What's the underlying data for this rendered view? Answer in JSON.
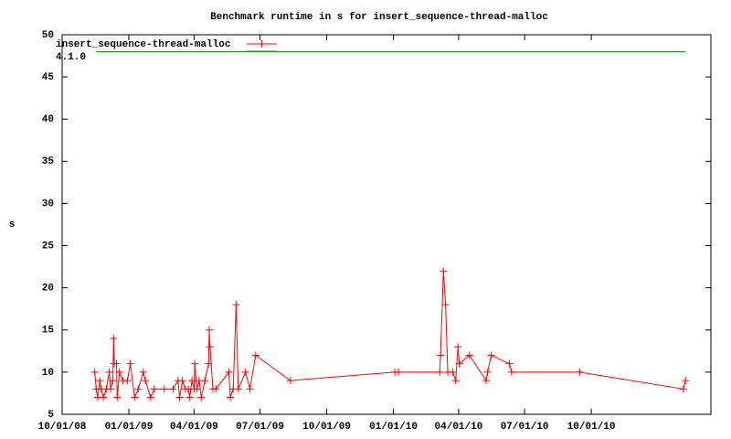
{
  "chart_data": {
    "type": "line",
    "title": "Benchmark runtime in s for insert_sequence-thread-malloc",
    "y_label": "s",
    "xlim": [
      "10/01/08",
      "03/15/11"
    ],
    "xticks": [
      "10/01/08",
      "01/01/09",
      "04/01/09",
      "07/01/09",
      "10/01/09",
      "01/01/10",
      "04/01/10",
      "07/01/10",
      "10/01/10"
    ],
    "ylim": [
      5,
      50
    ],
    "yticks": [
      5,
      10,
      15,
      20,
      25,
      30,
      35,
      40,
      45,
      50
    ],
    "legend": "top-left",
    "series": [
      {
        "name": "insert_sequence-thread-malloc",
        "color": "#ff0000",
        "markers": true,
        "x": [
          "11/15/08",
          "11/17/08",
          "11/19/08",
          "11/22/08",
          "11/24/08",
          "11/27/08",
          "12/01/08",
          "12/05/08",
          "12/07/08",
          "12/10/08",
          "12/11/08",
          "12/12/08",
          "12/15/08",
          "12/16/08",
          "12/19/08",
          "12/24/08",
          "12/30/08",
          "01/03/09",
          "01/09/09",
          "01/14/09",
          "01/21/09",
          "01/24/09",
          "01/31/09",
          "02/05/09",
          "02/19/09",
          "03/03/09",
          "03/10/09",
          "03/12/09",
          "03/16/09",
          "03/20/09",
          "03/24/09",
          "03/26/09",
          "03/29/09",
          "04/01/09",
          "04/02/09",
          "04/05/09",
          "04/08/09",
          "04/11/09",
          "04/16/09",
          "04/21/09",
          "04/22/09",
          "04/23/09",
          "04/27/09",
          "05/01/09",
          "05/19/09",
          "05/21/09",
          "05/25/09",
          "05/29/09",
          "06/01/09",
          "06/11/09",
          "06/17/09",
          "06/25/09",
          "08/12/09",
          "01/03/10",
          "01/08/10",
          "03/06/10",
          "03/07/10",
          "03/11/10",
          "03/14/10",
          "03/17/10",
          "03/24/10",
          "03/28/10",
          "03/31/10",
          "04/02/10",
          "04/16/10",
          "05/09/10",
          "05/11/10",
          "05/16/10",
          "06/10/10",
          "06/13/10",
          "09/15/10",
          "02/05/11",
          "02/08/11"
        ],
        "values": [
          10,
          8,
          7,
          9,
          8,
          7,
          8,
          10,
          8,
          9,
          14,
          11,
          11,
          7,
          10,
          9,
          9,
          11,
          7,
          8,
          10,
          9,
          7,
          8,
          8,
          8,
          9,
          7,
          9,
          8,
          8,
          7,
          9,
          8,
          11,
          8,
          9,
          7,
          9,
          11,
          15,
          13,
          8,
          8,
          10,
          7,
          8,
          18,
          8,
          10,
          8,
          12,
          9,
          10,
          10,
          10,
          12,
          22,
          18,
          10,
          10,
          9,
          13,
          11,
          12,
          9,
          10,
          12,
          11,
          10,
          10,
          8,
          9
        ]
      },
      {
        "name": "4.1.0",
        "color": "#00a000",
        "markers": false,
        "x": [
          "11/17/08",
          "02/08/11"
        ],
        "values": [
          48,
          48
        ]
      }
    ]
  }
}
